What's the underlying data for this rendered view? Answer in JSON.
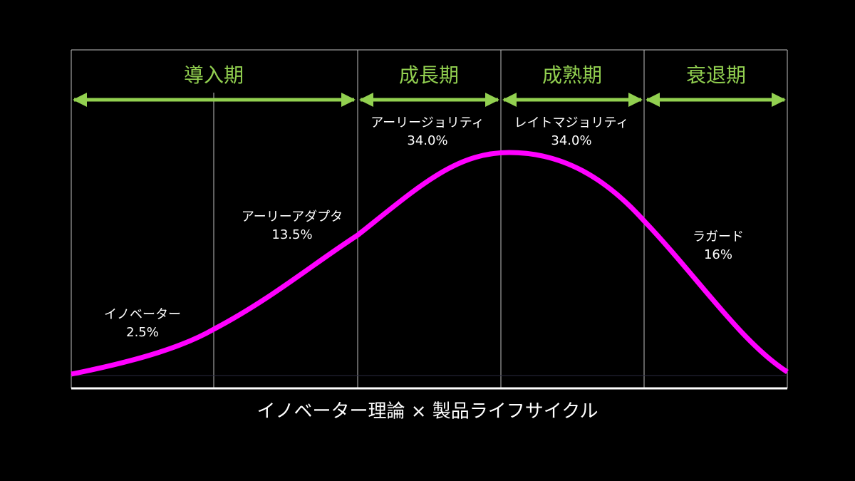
{
  "phases": [
    "導入期",
    "成長期",
    "成熟期",
    "衰退期"
  ],
  "segments": [
    {
      "label": "イノベーター",
      "share": "2.5%"
    },
    {
      "label": "アーリーアダプタ",
      "share": "13.5%"
    },
    {
      "label": "アーリージョリティ",
      "share": "34.0%"
    },
    {
      "label": "レイトマジョリティ",
      "share": "34.0%"
    },
    {
      "label": "ラガード",
      "share": "16%"
    }
  ],
  "caption": "イノベーター理論 × 製品ライフサイクル"
}
